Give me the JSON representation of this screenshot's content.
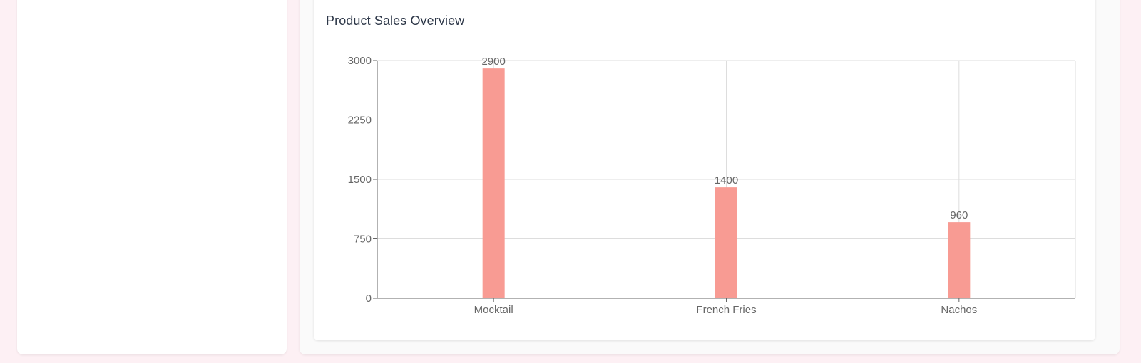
{
  "card": {
    "title": "Product Sales Overview"
  },
  "chart_data": {
    "type": "bar",
    "title": "Product Sales Overview",
    "categories": [
      "Mocktail",
      "French Fries",
      "Nachos"
    ],
    "values": [
      2900,
      1400,
      960
    ],
    "ylim": [
      0,
      3000
    ],
    "yticks": [
      0,
      750,
      1500,
      2250,
      3000
    ],
    "xlabel": "",
    "ylabel": "",
    "grid": true,
    "show_value_labels": true,
    "bar_color": "#f89b93",
    "grid_color": "#dddddd",
    "axis_color": "#666666"
  }
}
